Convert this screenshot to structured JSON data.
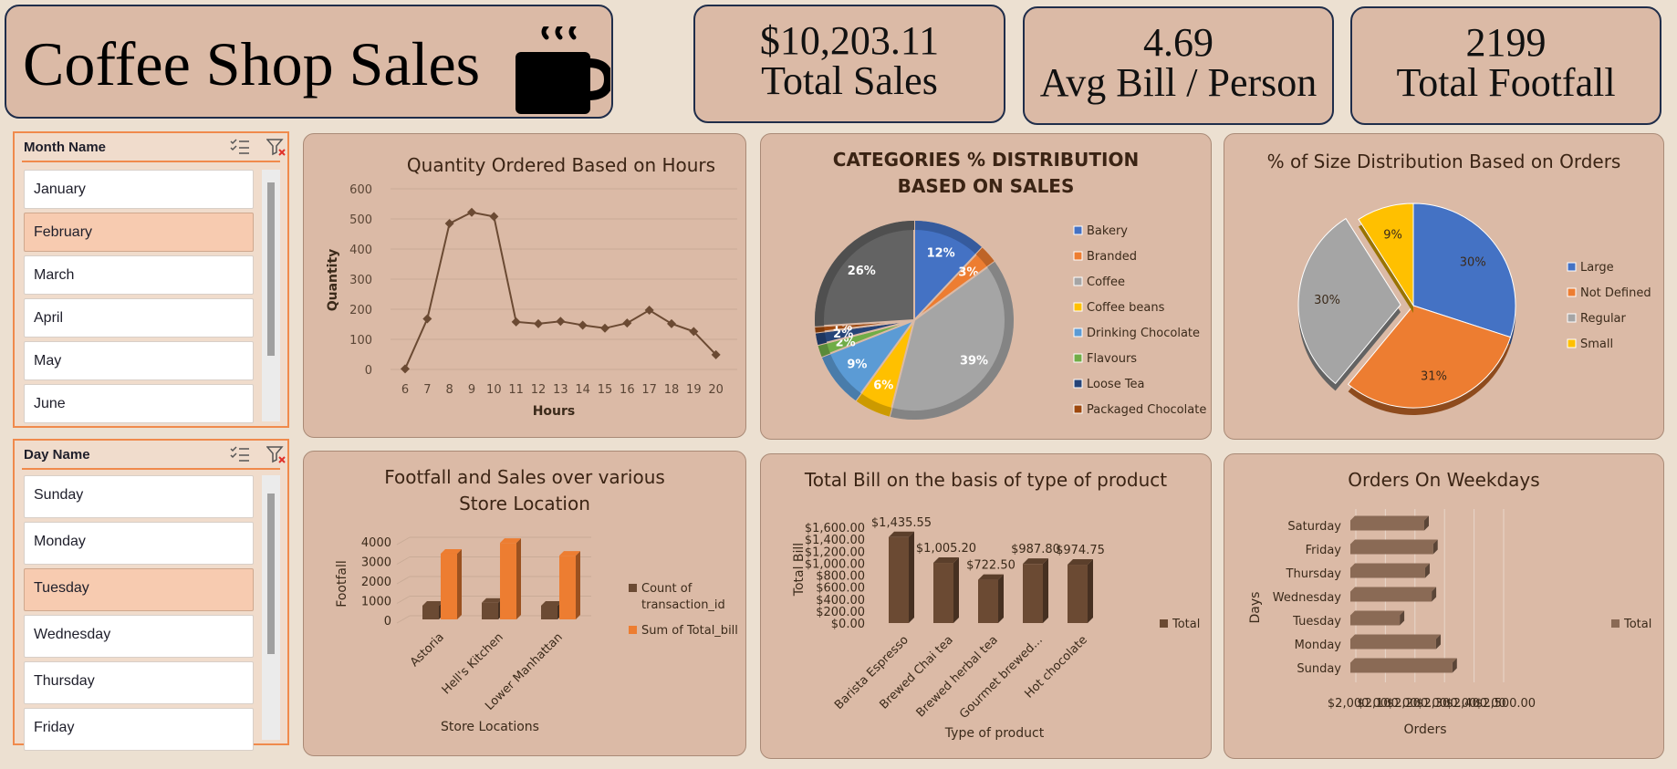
{
  "header": {
    "title": "Coffee Shop Sales",
    "kpis": [
      {
        "value": "$10,203.11",
        "label": "Total Sales"
      },
      {
        "value": "4.69",
        "label": "Avg Bill / Person"
      },
      {
        "value": "2199",
        "label": "Total Footfall"
      }
    ]
  },
  "slicers": {
    "month": {
      "title": "Month Name",
      "items": [
        "January",
        "February",
        "March",
        "April",
        "May",
        "June"
      ],
      "selected": "February"
    },
    "day": {
      "title": "Day Name",
      "items": [
        "Sunday",
        "Monday",
        "Tuesday",
        "Wednesday",
        "Thursday",
        "Friday"
      ],
      "selected": "Tuesday"
    }
  },
  "colors": {
    "brown_series": "#6b4a33",
    "orange_series": "#ed7d31",
    "blue": "#4472c4",
    "gray": "#a5a5a5",
    "gold": "#ffc000",
    "lightblue": "#5b9bd5",
    "green": "#70ad47",
    "navy": "#264478",
    "darkorange": "#9e480e",
    "darkgray": "#636363"
  },
  "chart_data": [
    {
      "id": "hours",
      "type": "line",
      "title": "Quantity Ordered Based on Hours",
      "xlabel": "Hours",
      "ylabel": "Quantity",
      "ylim": [
        0,
        600
      ],
      "yticks": [
        "0",
        "100",
        "200",
        "300",
        "400",
        "500",
        "600"
      ],
      "x": [
        "6",
        "7",
        "8",
        "9",
        "10",
        "11",
        "12",
        "13",
        "14",
        "15",
        "16",
        "17",
        "18",
        "19",
        "20"
      ],
      "values": [
        2,
        168,
        485,
        522,
        508,
        158,
        152,
        160,
        147,
        137,
        154,
        197,
        152,
        126,
        49
      ]
    },
    {
      "id": "categories",
      "type": "pie",
      "title": "CATEGORIES % DISTRIBUTION BASED ON SALES",
      "legend_position": "right",
      "slices": [
        {
          "name": "Bakery",
          "value": 12,
          "label": "12%",
          "color": "#4472c4"
        },
        {
          "name": "Branded",
          "value": 3,
          "label": "3%",
          "color": "#ed7d31"
        },
        {
          "name": "Coffee",
          "value": 39,
          "label": "39%",
          "color": "#a5a5a5"
        },
        {
          "name": "Coffee beans",
          "value": 6,
          "label": "6%",
          "color": "#ffc000"
        },
        {
          "name": "Drinking Chocolate",
          "value": 9,
          "label": "9%",
          "color": "#5b9bd5"
        },
        {
          "name": "Flavours",
          "value": 2,
          "label": "2%",
          "color": "#70ad47"
        },
        {
          "name": "Loose Tea",
          "value": 2,
          "label": "2%",
          "color": "#264478"
        },
        {
          "name": "Packaged Chocolate",
          "value": 1,
          "label": "1%",
          "color": "#9e480e"
        },
        {
          "name": "",
          "value": 26,
          "label": "26%",
          "color": "#636363"
        }
      ],
      "legend": [
        "Bakery",
        "Branded",
        "Coffee",
        "Coffee beans",
        "Drinking Chocolate",
        "Flavours",
        "Loose Tea",
        "Packaged Chocolate"
      ]
    },
    {
      "id": "sizes",
      "type": "pie",
      "title": "% of Size Distribution Based on Orders",
      "legend_position": "right",
      "slices": [
        {
          "name": "Large",
          "value": 30,
          "label": "30%",
          "color": "#4472c4"
        },
        {
          "name": "Not Defined",
          "value": 31,
          "label": "31%",
          "color": "#ed7d31"
        },
        {
          "name": "Regular",
          "value": 30,
          "label": "30%",
          "color": "#a5a5a5"
        },
        {
          "name": "Small",
          "value": 9,
          "label": "9%",
          "color": "#ffc000"
        }
      ],
      "legend": [
        "Large",
        "Not Defined",
        "Regular",
        "Small"
      ]
    },
    {
      "id": "stores",
      "type": "bar",
      "title": "Footfall and Sales over various Store Location",
      "xlabel": "Store Locations",
      "ylabel": "Footfall",
      "ylim": [
        0,
        4000
      ],
      "yticks": [
        "0",
        "1000",
        "2000",
        "3000",
        "4000"
      ],
      "categories": [
        "Astoria",
        "Hell's Kitchen",
        "Lower Manhattan"
      ],
      "series": [
        {
          "name": "Count of transaction_id",
          "values": [
            700,
            850,
            700
          ]
        },
        {
          "name": "Sum of Total_bill",
          "values": [
            3350,
            3900,
            3250
          ]
        }
      ]
    },
    {
      "id": "products",
      "type": "bar",
      "title": "Total Bill on the basis of type of product",
      "xlabel": "Type of product",
      "ylabel": "Total Bill",
      "ylim": [
        0,
        1600
      ],
      "yticks": [
        "$0.00",
        "$200.00",
        "$400.00",
        "$600.00",
        "$800.00",
        "$1,000.00",
        "$1,200.00",
        "$1,400.00",
        "$1,600.00"
      ],
      "categories": [
        "Barista Espresso",
        "Brewed Chai tea",
        "Brewed herbal tea",
        "Gourmet brewed...",
        "Hot chocolate"
      ],
      "values": [
        1435.55,
        1005.2,
        722.5,
        987.8,
        974.75
      ],
      "value_labels": [
        "$1,435.55",
        "$1,005.20",
        "$722.50",
        "$987.80",
        "$974.75"
      ],
      "legend": [
        "Total"
      ]
    },
    {
      "id": "weekdays",
      "type": "bar",
      "title": "Orders On Weekdays",
      "xlabel": "Orders",
      "ylabel": "Days",
      "xlim": [
        2000,
        2500
      ],
      "xticks": [
        "$2,000.00",
        "$2,100.00",
        "$2,200.00",
        "$2,300.00",
        "$2,400.00",
        "$2,500.00"
      ],
      "categories": [
        "Saturday",
        "Friday",
        "Thursday",
        "Wednesday",
        "Tuesday",
        "Monday",
        "Sunday"
      ],
      "values": [
        2250,
        2280,
        2253,
        2275,
        2167,
        2290,
        2345
      ],
      "legend": [
        "Total"
      ]
    }
  ]
}
